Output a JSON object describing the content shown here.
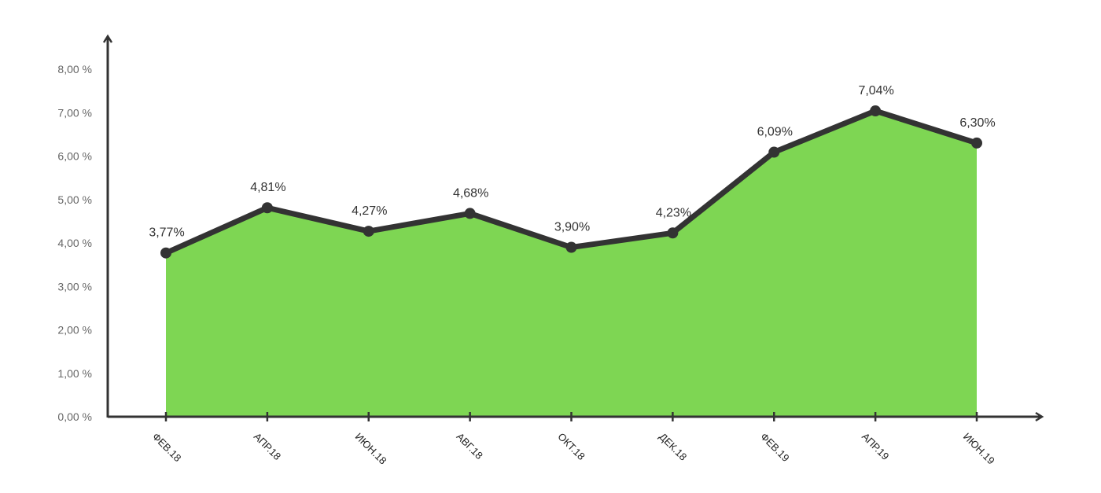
{
  "chart_data": {
    "type": "area",
    "title": "",
    "xlabel": "",
    "ylabel": "",
    "categories": [
      "ФЕВ.18",
      "АПР.18",
      "ИЮН.18",
      "АВГ.18",
      "ОКТ.18",
      "ДЕК.18",
      "ФЕВ.19",
      "АПР.19",
      "ИЮН.19"
    ],
    "values": [
      3.77,
      4.81,
      4.27,
      4.68,
      3.9,
      4.23,
      6.09,
      7.04,
      6.3
    ],
    "data_labels": [
      "3,77%",
      "4,81%",
      "4,27%",
      "4,68%",
      "3,90%",
      "4,23%",
      "6,09%",
      "7,04%",
      "6,30%"
    ],
    "ylim": [
      0,
      8
    ],
    "y_ticks": [
      0,
      1,
      2,
      3,
      4,
      5,
      6,
      7,
      8
    ],
    "y_tick_labels": [
      "0,00 %",
      "1,00 %",
      "2,00 %",
      "3,00 %",
      "4,00 %",
      "5,00 %",
      "6,00 %",
      "7,00 %",
      "8,00 %"
    ],
    "grid": false,
    "legend": "none",
    "colors": {
      "fill": "#7ed653",
      "line": "#333333",
      "axis": "#333333"
    }
  }
}
